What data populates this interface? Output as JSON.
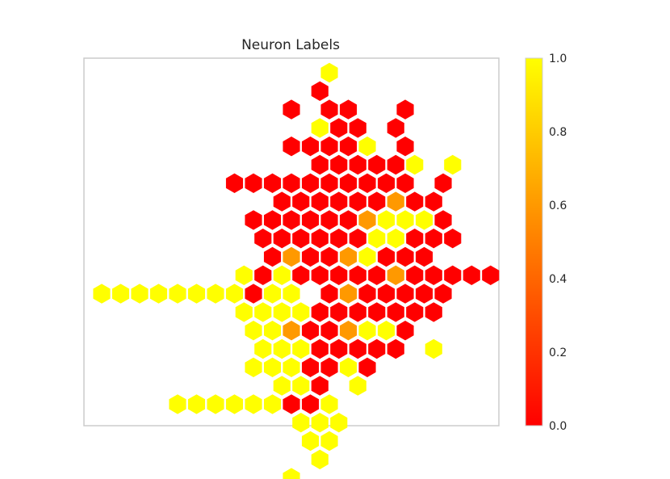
{
  "chart_data": {
    "type": "heatmap",
    "title": "Neuron Labels",
    "xlabel": "",
    "ylabel": "",
    "grid": false,
    "colormap": {
      "name": "autumn",
      "low": "#ff0000",
      "mid": "#ff8000",
      "high": "#ffff00"
    },
    "value_range": [
      0.0,
      1.0
    ],
    "colorbar": {
      "placement": "right",
      "tick_values": [
        0.0,
        0.2,
        0.4,
        0.6,
        0.8,
        1.0
      ],
      "tick_labels": [
        "0.0",
        "0.2",
        "0.4",
        "0.6",
        "0.8",
        "1.0"
      ]
    },
    "grid_shape": {
      "rows": 23,
      "cols": 21
    },
    "cells": [
      {
        "row": 0,
        "col": 12,
        "value": 1.0
      },
      {
        "row": 1,
        "col": 11,
        "value": 0.0
      },
      {
        "row": 2,
        "col": 10,
        "value": 0.0
      },
      {
        "row": 2,
        "col": 12,
        "value": 0.0
      },
      {
        "row": 2,
        "col": 13,
        "value": 0.0
      },
      {
        "row": 2,
        "col": 16,
        "value": 0.0
      },
      {
        "row": 3,
        "col": 11,
        "value": 1.0
      },
      {
        "row": 3,
        "col": 12,
        "value": 0.0
      },
      {
        "row": 3,
        "col": 13,
        "value": 0.0
      },
      {
        "row": 3,
        "col": 15,
        "value": 0.0
      },
      {
        "row": 4,
        "col": 10,
        "value": 0.0
      },
      {
        "row": 4,
        "col": 11,
        "value": 0.0
      },
      {
        "row": 4,
        "col": 12,
        "value": 0.0
      },
      {
        "row": 4,
        "col": 13,
        "value": 0.0
      },
      {
        "row": 4,
        "col": 14,
        "value": 1.0
      },
      {
        "row": 4,
        "col": 16,
        "value": 0.0
      },
      {
        "row": 5,
        "col": 11,
        "value": 0.0
      },
      {
        "row": 5,
        "col": 12,
        "value": 0.0
      },
      {
        "row": 5,
        "col": 13,
        "value": 0.0
      },
      {
        "row": 5,
        "col": 14,
        "value": 0.0
      },
      {
        "row": 5,
        "col": 15,
        "value": 0.0
      },
      {
        "row": 5,
        "col": 16,
        "value": 1.0
      },
      {
        "row": 5,
        "col": 18,
        "value": 1.0
      },
      {
        "row": 6,
        "col": 7,
        "value": 0.0
      },
      {
        "row": 6,
        "col": 8,
        "value": 0.0
      },
      {
        "row": 6,
        "col": 9,
        "value": 0.0
      },
      {
        "row": 6,
        "col": 10,
        "value": 0.0
      },
      {
        "row": 6,
        "col": 11,
        "value": 0.0
      },
      {
        "row": 6,
        "col": 12,
        "value": 0.0
      },
      {
        "row": 6,
        "col": 13,
        "value": 0.0
      },
      {
        "row": 6,
        "col": 14,
        "value": 0.0
      },
      {
        "row": 6,
        "col": 15,
        "value": 0.0
      },
      {
        "row": 6,
        "col": 16,
        "value": 0.0
      },
      {
        "row": 6,
        "col": 18,
        "value": 0.0
      },
      {
        "row": 7,
        "col": 9,
        "value": 0.0
      },
      {
        "row": 7,
        "col": 10,
        "value": 0.0
      },
      {
        "row": 7,
        "col": 11,
        "value": 0.0
      },
      {
        "row": 7,
        "col": 12,
        "value": 0.0
      },
      {
        "row": 7,
        "col": 13,
        "value": 0.0
      },
      {
        "row": 7,
        "col": 14,
        "value": 0.0
      },
      {
        "row": 7,
        "col": 15,
        "value": 0.6
      },
      {
        "row": 7,
        "col": 16,
        "value": 0.0
      },
      {
        "row": 7,
        "col": 17,
        "value": 0.0
      },
      {
        "row": 8,
        "col": 8,
        "value": 0.0
      },
      {
        "row": 8,
        "col": 9,
        "value": 0.0
      },
      {
        "row": 8,
        "col": 10,
        "value": 0.0
      },
      {
        "row": 8,
        "col": 11,
        "value": 0.0
      },
      {
        "row": 8,
        "col": 12,
        "value": 0.0
      },
      {
        "row": 8,
        "col": 13,
        "value": 0.0
      },
      {
        "row": 8,
        "col": 14,
        "value": 0.6
      },
      {
        "row": 8,
        "col": 15,
        "value": 1.0
      },
      {
        "row": 8,
        "col": 16,
        "value": 1.0
      },
      {
        "row": 8,
        "col": 17,
        "value": 1.0
      },
      {
        "row": 8,
        "col": 18,
        "value": 0.0
      },
      {
        "row": 9,
        "col": 8,
        "value": 0.0
      },
      {
        "row": 9,
        "col": 9,
        "value": 0.0
      },
      {
        "row": 9,
        "col": 10,
        "value": 0.0
      },
      {
        "row": 9,
        "col": 11,
        "value": 0.0
      },
      {
        "row": 9,
        "col": 12,
        "value": 0.0
      },
      {
        "row": 9,
        "col": 13,
        "value": 0.0
      },
      {
        "row": 9,
        "col": 14,
        "value": 1.0
      },
      {
        "row": 9,
        "col": 15,
        "value": 1.0
      },
      {
        "row": 9,
        "col": 16,
        "value": 0.0
      },
      {
        "row": 9,
        "col": 17,
        "value": 0.0
      },
      {
        "row": 9,
        "col": 18,
        "value": 0.0
      },
      {
        "row": 10,
        "col": 9,
        "value": 0.0
      },
      {
        "row": 10,
        "col": 10,
        "value": 0.6
      },
      {
        "row": 10,
        "col": 11,
        "value": 0.0
      },
      {
        "row": 10,
        "col": 12,
        "value": 0.0
      },
      {
        "row": 10,
        "col": 13,
        "value": 0.6
      },
      {
        "row": 10,
        "col": 14,
        "value": 1.0
      },
      {
        "row": 10,
        "col": 15,
        "value": 0.0
      },
      {
        "row": 10,
        "col": 16,
        "value": 0.0
      },
      {
        "row": 10,
        "col": 17,
        "value": 0.0
      },
      {
        "row": 11,
        "col": 7,
        "value": 1.0
      },
      {
        "row": 11,
        "col": 8,
        "value": 0.0
      },
      {
        "row": 11,
        "col": 9,
        "value": 1.0
      },
      {
        "row": 11,
        "col": 10,
        "value": 0.0
      },
      {
        "row": 11,
        "col": 11,
        "value": 0.0
      },
      {
        "row": 11,
        "col": 12,
        "value": 0.0
      },
      {
        "row": 11,
        "col": 13,
        "value": 0.0
      },
      {
        "row": 11,
        "col": 14,
        "value": 0.0
      },
      {
        "row": 11,
        "col": 15,
        "value": 0.6
      },
      {
        "row": 11,
        "col": 16,
        "value": 0.0
      },
      {
        "row": 11,
        "col": 17,
        "value": 0.0
      },
      {
        "row": 11,
        "col": 18,
        "value": 0.0
      },
      {
        "row": 11,
        "col": 19,
        "value": 0.0
      },
      {
        "row": 11,
        "col": 20,
        "value": 0.0
      },
      {
        "row": 12,
        "col": 0,
        "value": 1.0
      },
      {
        "row": 12,
        "col": 1,
        "value": 1.0
      },
      {
        "row": 12,
        "col": 2,
        "value": 1.0
      },
      {
        "row": 12,
        "col": 3,
        "value": 1.0
      },
      {
        "row": 12,
        "col": 4,
        "value": 1.0
      },
      {
        "row": 12,
        "col": 5,
        "value": 1.0
      },
      {
        "row": 12,
        "col": 6,
        "value": 1.0
      },
      {
        "row": 12,
        "col": 7,
        "value": 1.0
      },
      {
        "row": 12,
        "col": 8,
        "value": 0.0
      },
      {
        "row": 12,
        "col": 9,
        "value": 1.0
      },
      {
        "row": 12,
        "col": 10,
        "value": 1.0
      },
      {
        "row": 12,
        "col": 12,
        "value": 0.0
      },
      {
        "row": 12,
        "col": 13,
        "value": 0.6
      },
      {
        "row": 12,
        "col": 14,
        "value": 0.0
      },
      {
        "row": 12,
        "col": 15,
        "value": 0.0
      },
      {
        "row": 12,
        "col": 16,
        "value": 0.0
      },
      {
        "row": 12,
        "col": 17,
        "value": 0.0
      },
      {
        "row": 12,
        "col": 18,
        "value": 0.0
      },
      {
        "row": 13,
        "col": 7,
        "value": 1.0
      },
      {
        "row": 13,
        "col": 8,
        "value": 1.0
      },
      {
        "row": 13,
        "col": 9,
        "value": 1.0
      },
      {
        "row": 13,
        "col": 10,
        "value": 1.0
      },
      {
        "row": 13,
        "col": 11,
        "value": 0.0
      },
      {
        "row": 13,
        "col": 12,
        "value": 0.0
      },
      {
        "row": 13,
        "col": 13,
        "value": 0.0
      },
      {
        "row": 13,
        "col": 14,
        "value": 0.0
      },
      {
        "row": 13,
        "col": 15,
        "value": 0.0
      },
      {
        "row": 13,
        "col": 16,
        "value": 0.0
      },
      {
        "row": 13,
        "col": 17,
        "value": 0.0
      },
      {
        "row": 14,
        "col": 8,
        "value": 1.0
      },
      {
        "row": 14,
        "col": 9,
        "value": 1.0
      },
      {
        "row": 14,
        "col": 10,
        "value": 0.6
      },
      {
        "row": 14,
        "col": 11,
        "value": 0.0
      },
      {
        "row": 14,
        "col": 12,
        "value": 0.0
      },
      {
        "row": 14,
        "col": 13,
        "value": 0.6
      },
      {
        "row": 14,
        "col": 14,
        "value": 1.0
      },
      {
        "row": 14,
        "col": 15,
        "value": 1.0
      },
      {
        "row": 14,
        "col": 16,
        "value": 0.0
      },
      {
        "row": 15,
        "col": 8,
        "value": 1.0
      },
      {
        "row": 15,
        "col": 9,
        "value": 1.0
      },
      {
        "row": 15,
        "col": 10,
        "value": 1.0
      },
      {
        "row": 15,
        "col": 11,
        "value": 0.0
      },
      {
        "row": 15,
        "col": 12,
        "value": 0.0
      },
      {
        "row": 15,
        "col": 13,
        "value": 0.0
      },
      {
        "row": 15,
        "col": 14,
        "value": 0.0
      },
      {
        "row": 15,
        "col": 15,
        "value": 0.0
      },
      {
        "row": 15,
        "col": 17,
        "value": 1.0
      },
      {
        "row": 16,
        "col": 8,
        "value": 1.0
      },
      {
        "row": 16,
        "col": 9,
        "value": 1.0
      },
      {
        "row": 16,
        "col": 10,
        "value": 1.0
      },
      {
        "row": 16,
        "col": 11,
        "value": 0.0
      },
      {
        "row": 16,
        "col": 12,
        "value": 0.0
      },
      {
        "row": 16,
        "col": 13,
        "value": 1.0
      },
      {
        "row": 16,
        "col": 14,
        "value": 0.0
      },
      {
        "row": 17,
        "col": 9,
        "value": 1.0
      },
      {
        "row": 17,
        "col": 10,
        "value": 1.0
      },
      {
        "row": 17,
        "col": 11,
        "value": 0.0
      },
      {
        "row": 17,
        "col": 13,
        "value": 1.0
      },
      {
        "row": 18,
        "col": 4,
        "value": 1.0
      },
      {
        "row": 18,
        "col": 5,
        "value": 1.0
      },
      {
        "row": 18,
        "col": 6,
        "value": 1.0
      },
      {
        "row": 18,
        "col": 7,
        "value": 1.0
      },
      {
        "row": 18,
        "col": 8,
        "value": 1.0
      },
      {
        "row": 18,
        "col": 9,
        "value": 1.0
      },
      {
        "row": 18,
        "col": 10,
        "value": 0.0
      },
      {
        "row": 18,
        "col": 11,
        "value": 0.0
      },
      {
        "row": 18,
        "col": 12,
        "value": 1.0
      },
      {
        "row": 19,
        "col": 10,
        "value": 1.0
      },
      {
        "row": 19,
        "col": 11,
        "value": 1.0
      },
      {
        "row": 19,
        "col": 12,
        "value": 1.0
      },
      {
        "row": 20,
        "col": 11,
        "value": 1.0
      },
      {
        "row": 20,
        "col": 12,
        "value": 1.0
      },
      {
        "row": 21,
        "col": 11,
        "value": 1.0
      },
      {
        "row": 22,
        "col": 10,
        "value": 1.0
      }
    ]
  }
}
